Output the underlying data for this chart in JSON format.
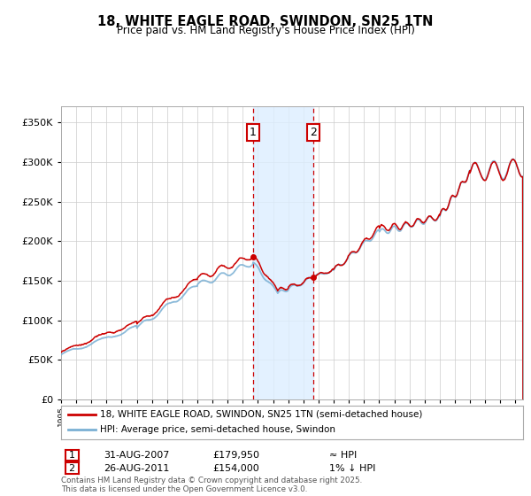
{
  "title": "18, WHITE EAGLE ROAD, SWINDON, SN25 1TN",
  "subtitle": "Price paid vs. HM Land Registry's House Price Index (HPI)",
  "legend_line1": "18, WHITE EAGLE ROAD, SWINDON, SN25 1TN (semi-detached house)",
  "legend_line2": "HPI: Average price, semi-detached house, Swindon",
  "annotation1_date": "31-AUG-2007",
  "annotation1_price": "£179,950",
  "annotation1_hpi": "≈ HPI",
  "annotation2_date": "26-AUG-2011",
  "annotation2_price": "£154,000",
  "annotation2_hpi": "1% ↓ HPI",
  "footer": "Contains HM Land Registry data © Crown copyright and database right 2025.\nThis data is licensed under the Open Government Licence v3.0.",
  "price_line_color": "#cc0000",
  "hpi_line_color": "#7ab0d4",
  "shade_color": "#ddeeff",
  "vline_color": "#cc0000",
  "ylim_min": 0,
  "ylim_max": 370000,
  "sale1_year": 2007.66,
  "sale2_year": 2011.66,
  "sale1_price": 179950,
  "sale2_price": 154000,
  "background_color": "#ffffff",
  "grid_color": "#cccccc"
}
